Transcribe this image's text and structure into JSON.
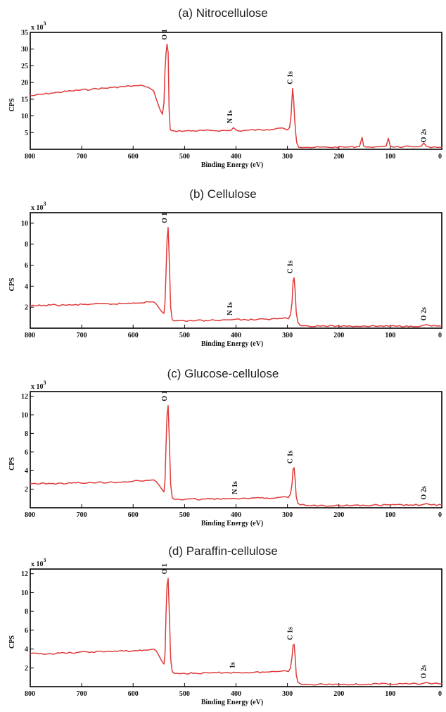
{
  "chart_data": [
    {
      "type": "line",
      "title": "(a) Nitrocellulose",
      "xlabel": "Binding Energy (eV)",
      "ylabel": "CPS",
      "y_multiplier": "x 10",
      "y_multiplier_exp": "3",
      "xlim": [
        800,
        0
      ],
      "ylim": [
        0,
        35
      ],
      "x_ticks": [
        800,
        700,
        600,
        500,
        400,
        300,
        200,
        100,
        0
      ],
      "y_ticks": [
        5,
        10,
        15,
        20,
        25,
        30,
        35
      ],
      "series": [
        {
          "color": "#e03b3b",
          "x": [
            800,
            760,
            720,
            680,
            640,
            600,
            580,
            570,
            560,
            555,
            548,
            543,
            540,
            538,
            536,
            534,
            532,
            530,
            528,
            526,
            520,
            500,
            450,
            410,
            405,
            400,
            395,
            380,
            340,
            320,
            310,
            300,
            296,
            293,
            290,
            288,
            286,
            284,
            282,
            278,
            272,
            260,
            220,
            180,
            160,
            155,
            152,
            148,
            140,
            120,
            108,
            104,
            100,
            96,
            90,
            60,
            40,
            35,
            30,
            25,
            10,
            0
          ],
          "y": [
            16,
            16.8,
            17.5,
            18,
            18.5,
            19,
            19,
            18.5,
            17.5,
            15,
            12,
            10.5,
            14,
            24,
            29,
            31.5,
            29,
            12,
            6,
            5.6,
            5.5,
            5.5,
            5.6,
            5.6,
            6.5,
            5.8,
            5.5,
            5.7,
            5.9,
            6.3,
            6.4,
            5.8,
            6.5,
            10,
            18.2,
            15,
            9,
            5,
            2,
            0.6,
            0.5,
            0.6,
            0.6,
            0.7,
            0.8,
            3.6,
            1,
            0.7,
            0.7,
            0.8,
            1,
            3.3,
            1,
            0.7,
            0.7,
            0.8,
            0.9,
            1.9,
            0.9,
            0.7,
            0.6,
            0.6
          ]
        }
      ],
      "annotations": [
        {
          "text": "O 1",
          "x": 532
        },
        {
          "text": "N 1s",
          "x": 405
        },
        {
          "text": "C 1s",
          "x": 288
        },
        {
          "text": "O 2s",
          "x": 28
        }
      ]
    },
    {
      "type": "line",
      "title": "(b) Cellulose",
      "xlabel": "Binding Energy (eV)",
      "ylabel": "CPS",
      "y_multiplier": "x 10",
      "y_multiplier_exp": "3",
      "xlim": [
        800,
        0
      ],
      "ylim": [
        0,
        11
      ],
      "x_ticks": [
        800,
        700,
        600,
        500,
        400,
        300,
        200,
        100,
        0
      ],
      "y_ticks": [
        2,
        4,
        6,
        8,
        10
      ],
      "series": [
        {
          "color": "#e03b3b",
          "x": [
            800,
            760,
            720,
            680,
            640,
            600,
            570,
            560,
            555,
            548,
            543,
            540,
            538,
            536,
            534,
            532,
            530,
            527,
            524,
            520,
            500,
            450,
            420,
            410,
            400,
            380,
            340,
            320,
            305,
            298,
            294,
            291,
            289,
            287,
            285,
            283,
            280,
            275,
            260,
            200,
            150,
            100,
            60,
            40,
            30,
            20,
            0
          ],
          "y": [
            2.1,
            2.2,
            2.2,
            2.3,
            2.3,
            2.4,
            2.5,
            2.5,
            2.3,
            1.8,
            1.5,
            1.4,
            2.5,
            5.5,
            8.5,
            9.6,
            7,
            2,
            0.8,
            0.7,
            0.7,
            0.75,
            0.8,
            0.8,
            0.85,
            0.8,
            0.85,
            0.9,
            1,
            0.9,
            1.3,
            2.5,
            4.5,
            4.8,
            3.5,
            1.5,
            0.6,
            0.25,
            0.22,
            0.2,
            0.2,
            0.2,
            0.2,
            0.22,
            0.35,
            0.2,
            0.2
          ]
        }
      ],
      "annotations": [
        {
          "text": "O 1",
          "x": 532
        },
        {
          "text": "N 1s",
          "x": 405
        },
        {
          "text": "C 1s",
          "x": 288
        },
        {
          "text": "O 2s",
          "x": 28
        }
      ]
    },
    {
      "type": "line",
      "title": "(c) Glucose-cellulose",
      "xlabel": "Binding Energy (eV)",
      "ylabel": "CPS",
      "y_multiplier": "x 10",
      "y_multiplier_exp": "3",
      "xlim": [
        800,
        0
      ],
      "ylim": [
        0,
        12.5
      ],
      "x_ticks": [
        800,
        700,
        600,
        500,
        400,
        300,
        200,
        100,
        0
      ],
      "y_ticks": [
        2,
        4,
        6,
        8,
        10,
        12
      ],
      "series": [
        {
          "color": "#e03b3b",
          "x": [
            800,
            760,
            720,
            680,
            640,
            600,
            570,
            560,
            555,
            548,
            543,
            540,
            538,
            536,
            534,
            532,
            530,
            527,
            524,
            520,
            500,
            450,
            420,
            410,
            400,
            380,
            340,
            320,
            305,
            298,
            294,
            291,
            289,
            287,
            285,
            283,
            280,
            275,
            260,
            200,
            150,
            100,
            60,
            40,
            30,
            20,
            0
          ],
          "y": [
            2.6,
            2.6,
            2.65,
            2.7,
            2.75,
            2.85,
            2.95,
            3,
            2.8,
            2.3,
            1.9,
            1.7,
            3,
            7,
            10,
            11,
            8,
            2.5,
            1.1,
            0.9,
            0.9,
            0.95,
            0.95,
            1,
            1,
            1,
            1.05,
            1.1,
            1.2,
            1.1,
            1.5,
            2.6,
            4.2,
            4.3,
            3,
            1.2,
            0.5,
            0.3,
            0.25,
            0.25,
            0.25,
            0.3,
            0.3,
            0.3,
            0.45,
            0.3,
            0.3
          ]
        }
      ],
      "annotations": [
        {
          "text": "O 1",
          "x": 532
        },
        {
          "text": "N 1s",
          "x": 395
        },
        {
          "text": "C 1s",
          "x": 288
        },
        {
          "text": "O 2s",
          "x": 28
        }
      ]
    },
    {
      "type": "line",
      "title": "(d) Paraffin-cellulose",
      "xlabel": "Binding Energy (eV)",
      "ylabel": "CPS",
      "y_multiplier": "x 10",
      "y_multiplier_exp": "3",
      "xlim": [
        800,
        0
      ],
      "ylim": [
        0,
        12.5
      ],
      "x_ticks": [
        800,
        700,
        600,
        500,
        400,
        300,
        200,
        100,
        0
      ],
      "y_ticks": [
        2,
        4,
        6,
        8,
        10,
        12
      ],
      "series": [
        {
          "color": "#e03b3b",
          "x": [
            800,
            760,
            720,
            680,
            640,
            600,
            570,
            560,
            555,
            548,
            543,
            540,
            538,
            536,
            534,
            532,
            530,
            527,
            524,
            520,
            500,
            450,
            420,
            400,
            380,
            340,
            320,
            305,
            298,
            294,
            291,
            289,
            287,
            285,
            283,
            280,
            275,
            260,
            200,
            150,
            100,
            60,
            40,
            30,
            20,
            0
          ],
          "y": [
            3.5,
            3.5,
            3.6,
            3.7,
            3.75,
            3.8,
            3.9,
            4,
            3.8,
            3.1,
            2.6,
            2.4,
            3.5,
            8,
            10.8,
            11.5,
            8.5,
            3,
            1.6,
            1.4,
            1.4,
            1.45,
            1.5,
            1.5,
            1.5,
            1.55,
            1.6,
            1.7,
            1.6,
            2,
            3.2,
            4.4,
            4.5,
            3.2,
            1.3,
            0.5,
            0.3,
            0.25,
            0.25,
            0.25,
            0.3,
            0.3,
            0.3,
            0.45,
            0.3,
            0.3
          ]
        }
      ],
      "annotations": [
        {
          "text": "O 1",
          "x": 532
        },
        {
          "text": "1s",
          "x": 400
        },
        {
          "text": "C 1s",
          "x": 288
        },
        {
          "text": "O 2s",
          "x": 28
        }
      ]
    }
  ]
}
